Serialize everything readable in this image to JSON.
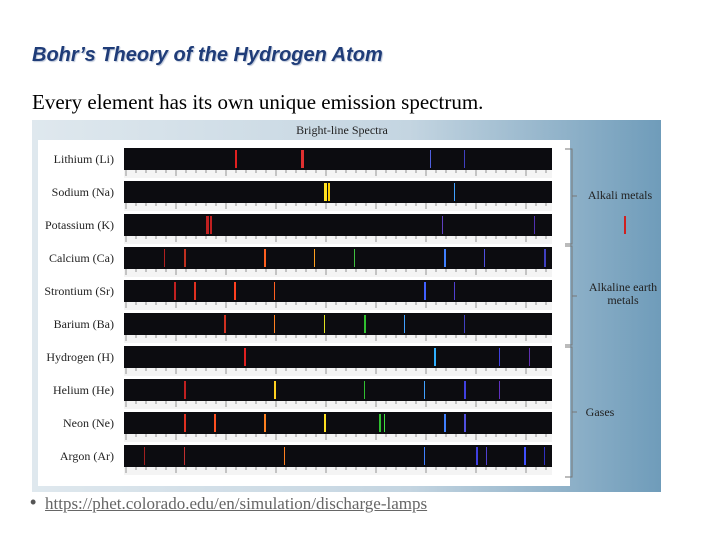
{
  "header": {
    "title": "Bohr’s Theory of the Hydrogen Atom"
  },
  "subtitle": "Every element has its own unique emission spectrum.",
  "figure": {
    "title": "Bright-line Spectra",
    "elements": [
      "Lithium (Li)",
      "Sodium (Na)",
      "Potassium (K)",
      "Calcium (Ca)",
      "Strontium (Sr)",
      "Barium (Ba)",
      "Hydrogen (H)",
      "Helium (He)",
      "Neon (Ne)",
      "Argon (Ar)"
    ],
    "groups": [
      {
        "label": "Alkali metals"
      },
      {
        "label": "Alkaline earth metals"
      },
      {
        "label": "Gases"
      }
    ]
  },
  "link": "https://phet.colorado.edu/en/simulation/discharge-lamps"
}
